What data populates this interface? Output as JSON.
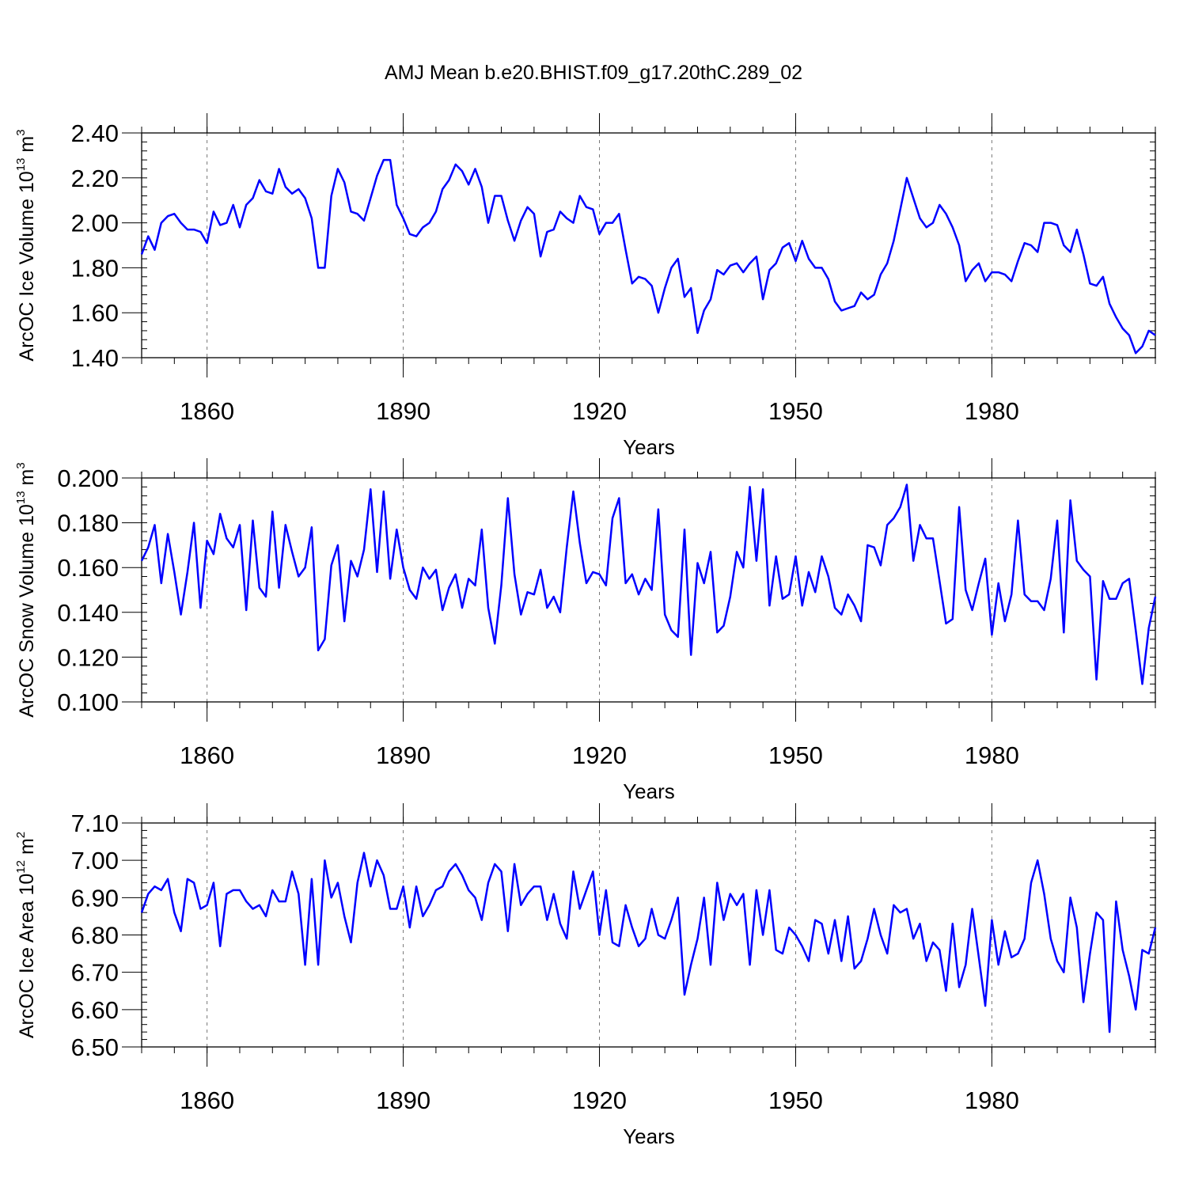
{
  "chart_data": {
    "title": "AMJ Mean b.e20.BHIST.f09_g17.20thC.289_02",
    "panels": [
      {
        "type": "line",
        "ylabel": {
          "text": "ArcOC Ice Volume 10",
          "exp": "13",
          "unit": " m",
          "unit_exp": "3"
        },
        "xlabel": "Years",
        "xlim": [
          1850,
          2005
        ],
        "ylim": [
          1.4,
          2.4
        ],
        "yticks": [
          1.4,
          1.6,
          1.8,
          2.0,
          2.2,
          2.4
        ],
        "ytick_labels": [
          "1.40",
          "1.60",
          "1.80",
          "2.00",
          "2.20",
          "2.40"
        ],
        "xticks": [
          1860,
          1890,
          1920,
          1950,
          1980
        ],
        "xtick_labels": [
          "1860",
          "1890",
          "1920",
          "1950",
          "1980"
        ],
        "grid": "vertical dashed",
        "color": "#0000ff",
        "x_start": 1850,
        "values": [
          1.86,
          1.94,
          1.88,
          2.0,
          2.03,
          2.04,
          2.0,
          1.97,
          1.97,
          1.96,
          1.91,
          2.05,
          1.99,
          2.0,
          2.08,
          1.98,
          2.08,
          2.11,
          2.19,
          2.14,
          2.13,
          2.24,
          2.16,
          2.13,
          2.15,
          2.11,
          2.02,
          1.8,
          1.8,
          2.12,
          2.24,
          2.18,
          2.05,
          2.04,
          2.01,
          2.11,
          2.21,
          2.28,
          2.28,
          2.08,
          2.02,
          1.95,
          1.94,
          1.98,
          2.0,
          2.05,
          2.15,
          2.19,
          2.26,
          2.23,
          2.17,
          2.24,
          2.16,
          2.0,
          2.12,
          2.12,
          2.01,
          1.92,
          2.01,
          2.07,
          2.04,
          1.85,
          1.96,
          1.97,
          2.05,
          2.02,
          2.0,
          2.12,
          2.07,
          2.06,
          1.95,
          2.0,
          2.0,
          2.04,
          1.88,
          1.73,
          1.76,
          1.75,
          1.72,
          1.6,
          1.71,
          1.8,
          1.84,
          1.67,
          1.71,
          1.51,
          1.61,
          1.66,
          1.79,
          1.77,
          1.81,
          1.82,
          1.78,
          1.82,
          1.85,
          1.66,
          1.79,
          1.82,
          1.89,
          1.91,
          1.83,
          1.92,
          1.84,
          1.8,
          1.8,
          1.75,
          1.65,
          1.61,
          1.62,
          1.63,
          1.69,
          1.66,
          1.68,
          1.77,
          1.82,
          1.92,
          2.06,
          2.2,
          2.11,
          2.02,
          1.98,
          2.0,
          2.08,
          2.04,
          1.98,
          1.9,
          1.74,
          1.79,
          1.82,
          1.74,
          1.78,
          1.78,
          1.77,
          1.74,
          1.83,
          1.91,
          1.9,
          1.87,
          2.0,
          2.0,
          1.99,
          1.9,
          1.87,
          1.97,
          1.86,
          1.73,
          1.72,
          1.76,
          1.64,
          1.58,
          1.53,
          1.5,
          1.42,
          1.45,
          1.52,
          1.5
        ]
      },
      {
        "type": "line",
        "ylabel": {
          "text": "ArcOC Snow Volume 10",
          "exp": "13",
          "unit": " m",
          "unit_exp": "3"
        },
        "xlabel": "Years",
        "xlim": [
          1850,
          2005
        ],
        "ylim": [
          0.1,
          0.2
        ],
        "yticks": [
          0.1,
          0.12,
          0.14,
          0.16,
          0.18,
          0.2
        ],
        "ytick_labels": [
          "0.100",
          "0.120",
          "0.140",
          "0.160",
          "0.180",
          "0.200"
        ],
        "xticks": [
          1860,
          1890,
          1920,
          1950,
          1980
        ],
        "xtick_labels": [
          "1860",
          "1890",
          "1920",
          "1950",
          "1980"
        ],
        "grid": "vertical dashed",
        "color": "#0000ff",
        "x_start": 1850,
        "values": [
          0.163,
          0.169,
          0.179,
          0.153,
          0.175,
          0.158,
          0.139,
          0.158,
          0.18,
          0.142,
          0.172,
          0.166,
          0.184,
          0.173,
          0.169,
          0.179,
          0.141,
          0.181,
          0.151,
          0.147,
          0.185,
          0.151,
          0.179,
          0.167,
          0.156,
          0.16,
          0.178,
          0.123,
          0.128,
          0.161,
          0.17,
          0.136,
          0.163,
          0.156,
          0.168,
          0.195,
          0.158,
          0.194,
          0.155,
          0.177,
          0.16,
          0.15,
          0.146,
          0.16,
          0.155,
          0.159,
          0.141,
          0.151,
          0.157,
          0.142,
          0.155,
          0.152,
          0.177,
          0.142,
          0.126,
          0.152,
          0.191,
          0.157,
          0.139,
          0.149,
          0.148,
          0.159,
          0.142,
          0.147,
          0.14,
          0.169,
          0.194,
          0.171,
          0.153,
          0.158,
          0.157,
          0.152,
          0.182,
          0.191,
          0.153,
          0.157,
          0.148,
          0.155,
          0.15,
          0.186,
          0.139,
          0.132,
          0.129,
          0.177,
          0.121,
          0.162,
          0.153,
          0.167,
          0.131,
          0.134,
          0.147,
          0.167,
          0.16,
          0.196,
          0.163,
          0.195,
          0.143,
          0.165,
          0.146,
          0.148,
          0.165,
          0.143,
          0.158,
          0.149,
          0.165,
          0.156,
          0.142,
          0.139,
          0.148,
          0.143,
          0.136,
          0.17,
          0.169,
          0.161,
          0.179,
          0.182,
          0.187,
          0.197,
          0.163,
          0.179,
          0.173,
          0.173,
          0.154,
          0.135,
          0.137,
          0.187,
          0.15,
          0.141,
          0.153,
          0.164,
          0.13,
          0.153,
          0.136,
          0.148,
          0.181,
          0.148,
          0.145,
          0.145,
          0.141,
          0.155,
          0.181,
          0.131,
          0.19,
          0.163,
          0.159,
          0.156,
          0.11,
          0.154,
          0.146,
          0.146,
          0.153,
          0.155,
          0.132,
          0.108,
          0.133,
          0.147
        ]
      },
      {
        "type": "line",
        "ylabel": {
          "text": "ArcOC Ice Area 10",
          "exp": "12",
          "unit": " m",
          "unit_exp": "2"
        },
        "xlabel": "Years",
        "xlim": [
          1850,
          2005
        ],
        "ylim": [
          6.5,
          7.1
        ],
        "yticks": [
          6.5,
          6.6,
          6.7,
          6.8,
          6.9,
          7.0,
          7.1
        ],
        "ytick_labels": [
          "6.50",
          "6.60",
          "6.70",
          "6.80",
          "6.90",
          "7.00",
          "7.10"
        ],
        "xticks": [
          1860,
          1890,
          1920,
          1950,
          1980
        ],
        "xtick_labels": [
          "1860",
          "1890",
          "1920",
          "1950",
          "1980"
        ],
        "grid": "vertical dashed",
        "color": "#0000ff",
        "x_start": 1850,
        "values": [
          6.86,
          6.91,
          6.93,
          6.92,
          6.95,
          6.86,
          6.81,
          6.95,
          6.94,
          6.87,
          6.88,
          6.94,
          6.77,
          6.91,
          6.92,
          6.92,
          6.89,
          6.87,
          6.88,
          6.85,
          6.92,
          6.89,
          6.89,
          6.97,
          6.91,
          6.72,
          6.95,
          6.72,
          7.0,
          6.9,
          6.94,
          6.85,
          6.78,
          6.94,
          7.02,
          6.93,
          7.0,
          6.96,
          6.87,
          6.87,
          6.93,
          6.82,
          6.93,
          6.85,
          6.88,
          6.92,
          6.93,
          6.97,
          6.99,
          6.96,
          6.92,
          6.9,
          6.84,
          6.94,
          6.99,
          6.97,
          6.81,
          6.99,
          6.88,
          6.91,
          6.93,
          6.93,
          6.84,
          6.91,
          6.83,
          6.79,
          6.97,
          6.87,
          6.92,
          6.97,
          6.8,
          6.92,
          6.78,
          6.77,
          6.88,
          6.82,
          6.77,
          6.79,
          6.87,
          6.8,
          6.79,
          6.84,
          6.9,
          6.64,
          6.72,
          6.79,
          6.9,
          6.72,
          6.94,
          6.84,
          6.91,
          6.88,
          6.91,
          6.72,
          6.92,
          6.8,
          6.92,
          6.76,
          6.75,
          6.82,
          6.8,
          6.77,
          6.73,
          6.84,
          6.83,
          6.75,
          6.84,
          6.73,
          6.85,
          6.71,
          6.73,
          6.79,
          6.87,
          6.8,
          6.75,
          6.88,
          6.86,
          6.87,
          6.79,
          6.83,
          6.73,
          6.78,
          6.76,
          6.65,
          6.83,
          6.66,
          6.72,
          6.87,
          6.74,
          6.61,
          6.84,
          6.72,
          6.81,
          6.74,
          6.75,
          6.79,
          6.94,
          7.0,
          6.91,
          6.79,
          6.73,
          6.7,
          6.9,
          6.82,
          6.62,
          6.75,
          6.86,
          6.84,
          6.54,
          6.89,
          6.76,
          6.69,
          6.6,
          6.76,
          6.75,
          6.82
        ]
      }
    ]
  }
}
